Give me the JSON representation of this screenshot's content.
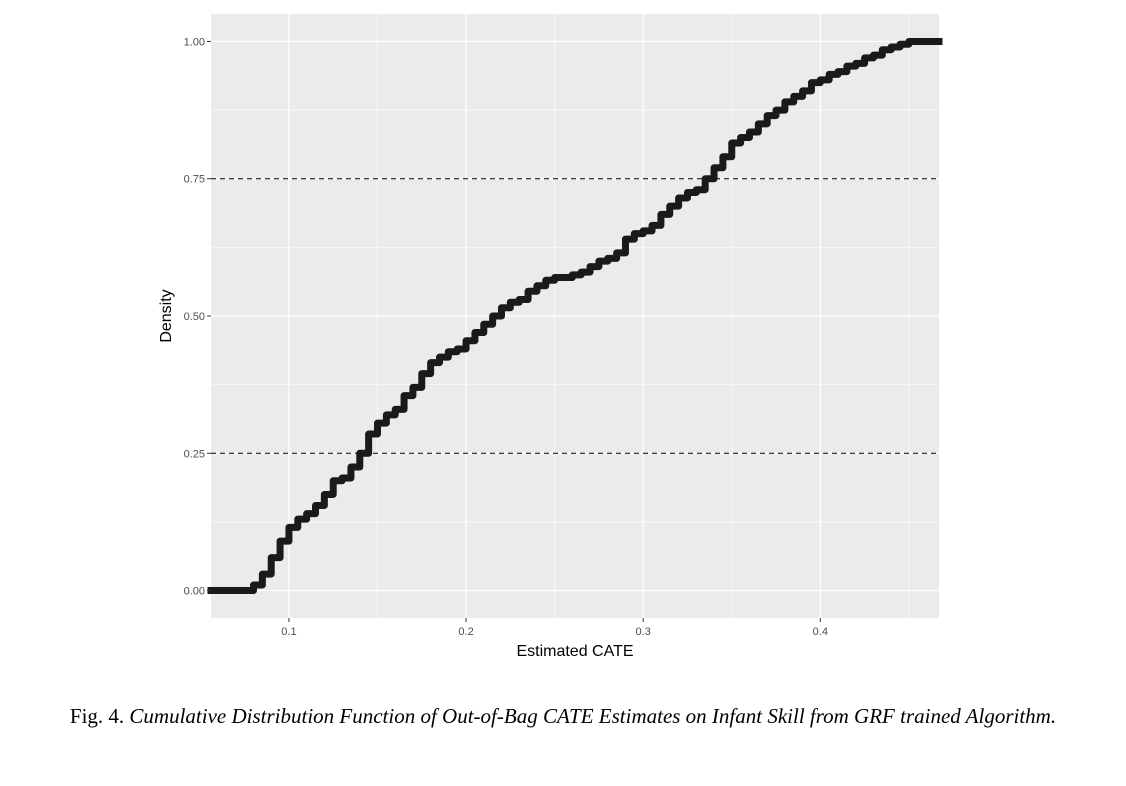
{
  "chart_data": {
    "type": "line",
    "step": true,
    "title": "",
    "xlabel": "Estimated CATE",
    "ylabel": "Density",
    "xlim": [
      0.056,
      0.467
    ],
    "ylim": [
      -0.05,
      1.05
    ],
    "x_ticks": [
      0.1,
      0.2,
      0.3,
      0.4
    ],
    "x_tick_labels": [
      "0.1",
      "0.2",
      "0.3",
      "0.4"
    ],
    "y_ticks": [
      0.0,
      0.25,
      0.5,
      0.75,
      1.0
    ],
    "y_tick_labels": [
      "0.00",
      "0.25",
      "0.50",
      "0.75",
      "1.00"
    ],
    "grid": true,
    "background": "#ebebeb",
    "line_color": "#1a1a1a",
    "reference_lines": [
      {
        "y": 0.25,
        "style": "dashed",
        "color": "#000000"
      },
      {
        "y": 0.75,
        "style": "dashed",
        "color": "#000000"
      }
    ],
    "series": [
      {
        "x": [
          0.056,
          0.073,
          0.08,
          0.085,
          0.09,
          0.095,
          0.1,
          0.105,
          0.11,
          0.115,
          0.12,
          0.125,
          0.13,
          0.135,
          0.14,
          0.145,
          0.15,
          0.155,
          0.16,
          0.165,
          0.17,
          0.175,
          0.18,
          0.185,
          0.19,
          0.195,
          0.2,
          0.205,
          0.21,
          0.215,
          0.22,
          0.225,
          0.23,
          0.235,
          0.24,
          0.245,
          0.25,
          0.255,
          0.26,
          0.265,
          0.27,
          0.275,
          0.28,
          0.285,
          0.29,
          0.295,
          0.3,
          0.305,
          0.31,
          0.315,
          0.32,
          0.325,
          0.33,
          0.335,
          0.34,
          0.345,
          0.35,
          0.355,
          0.36,
          0.365,
          0.37,
          0.375,
          0.38,
          0.385,
          0.39,
          0.395,
          0.4,
          0.405,
          0.41,
          0.415,
          0.42,
          0.425,
          0.43,
          0.435,
          0.44,
          0.445,
          0.45,
          0.455,
          0.467
        ],
        "y": [
          0.0,
          0.0,
          0.01,
          0.03,
          0.06,
          0.09,
          0.115,
          0.13,
          0.14,
          0.155,
          0.175,
          0.2,
          0.205,
          0.225,
          0.25,
          0.285,
          0.305,
          0.32,
          0.33,
          0.355,
          0.37,
          0.395,
          0.415,
          0.425,
          0.435,
          0.44,
          0.455,
          0.47,
          0.485,
          0.5,
          0.515,
          0.525,
          0.53,
          0.545,
          0.555,
          0.565,
          0.57,
          0.57,
          0.575,
          0.58,
          0.59,
          0.6,
          0.605,
          0.615,
          0.64,
          0.65,
          0.655,
          0.665,
          0.685,
          0.7,
          0.715,
          0.725,
          0.73,
          0.75,
          0.77,
          0.79,
          0.815,
          0.825,
          0.835,
          0.85,
          0.865,
          0.875,
          0.89,
          0.9,
          0.91,
          0.925,
          0.93,
          0.94,
          0.945,
          0.955,
          0.96,
          0.97,
          0.975,
          0.985,
          0.99,
          0.995,
          1.0,
          1.0,
          1.0
        ]
      }
    ]
  },
  "caption": {
    "number": "Fig. 4.",
    "text": "Cumulative Distribution Function of Out-of-Bag CATE Estimates on Infant Skill from GRF trained Algorithm."
  }
}
